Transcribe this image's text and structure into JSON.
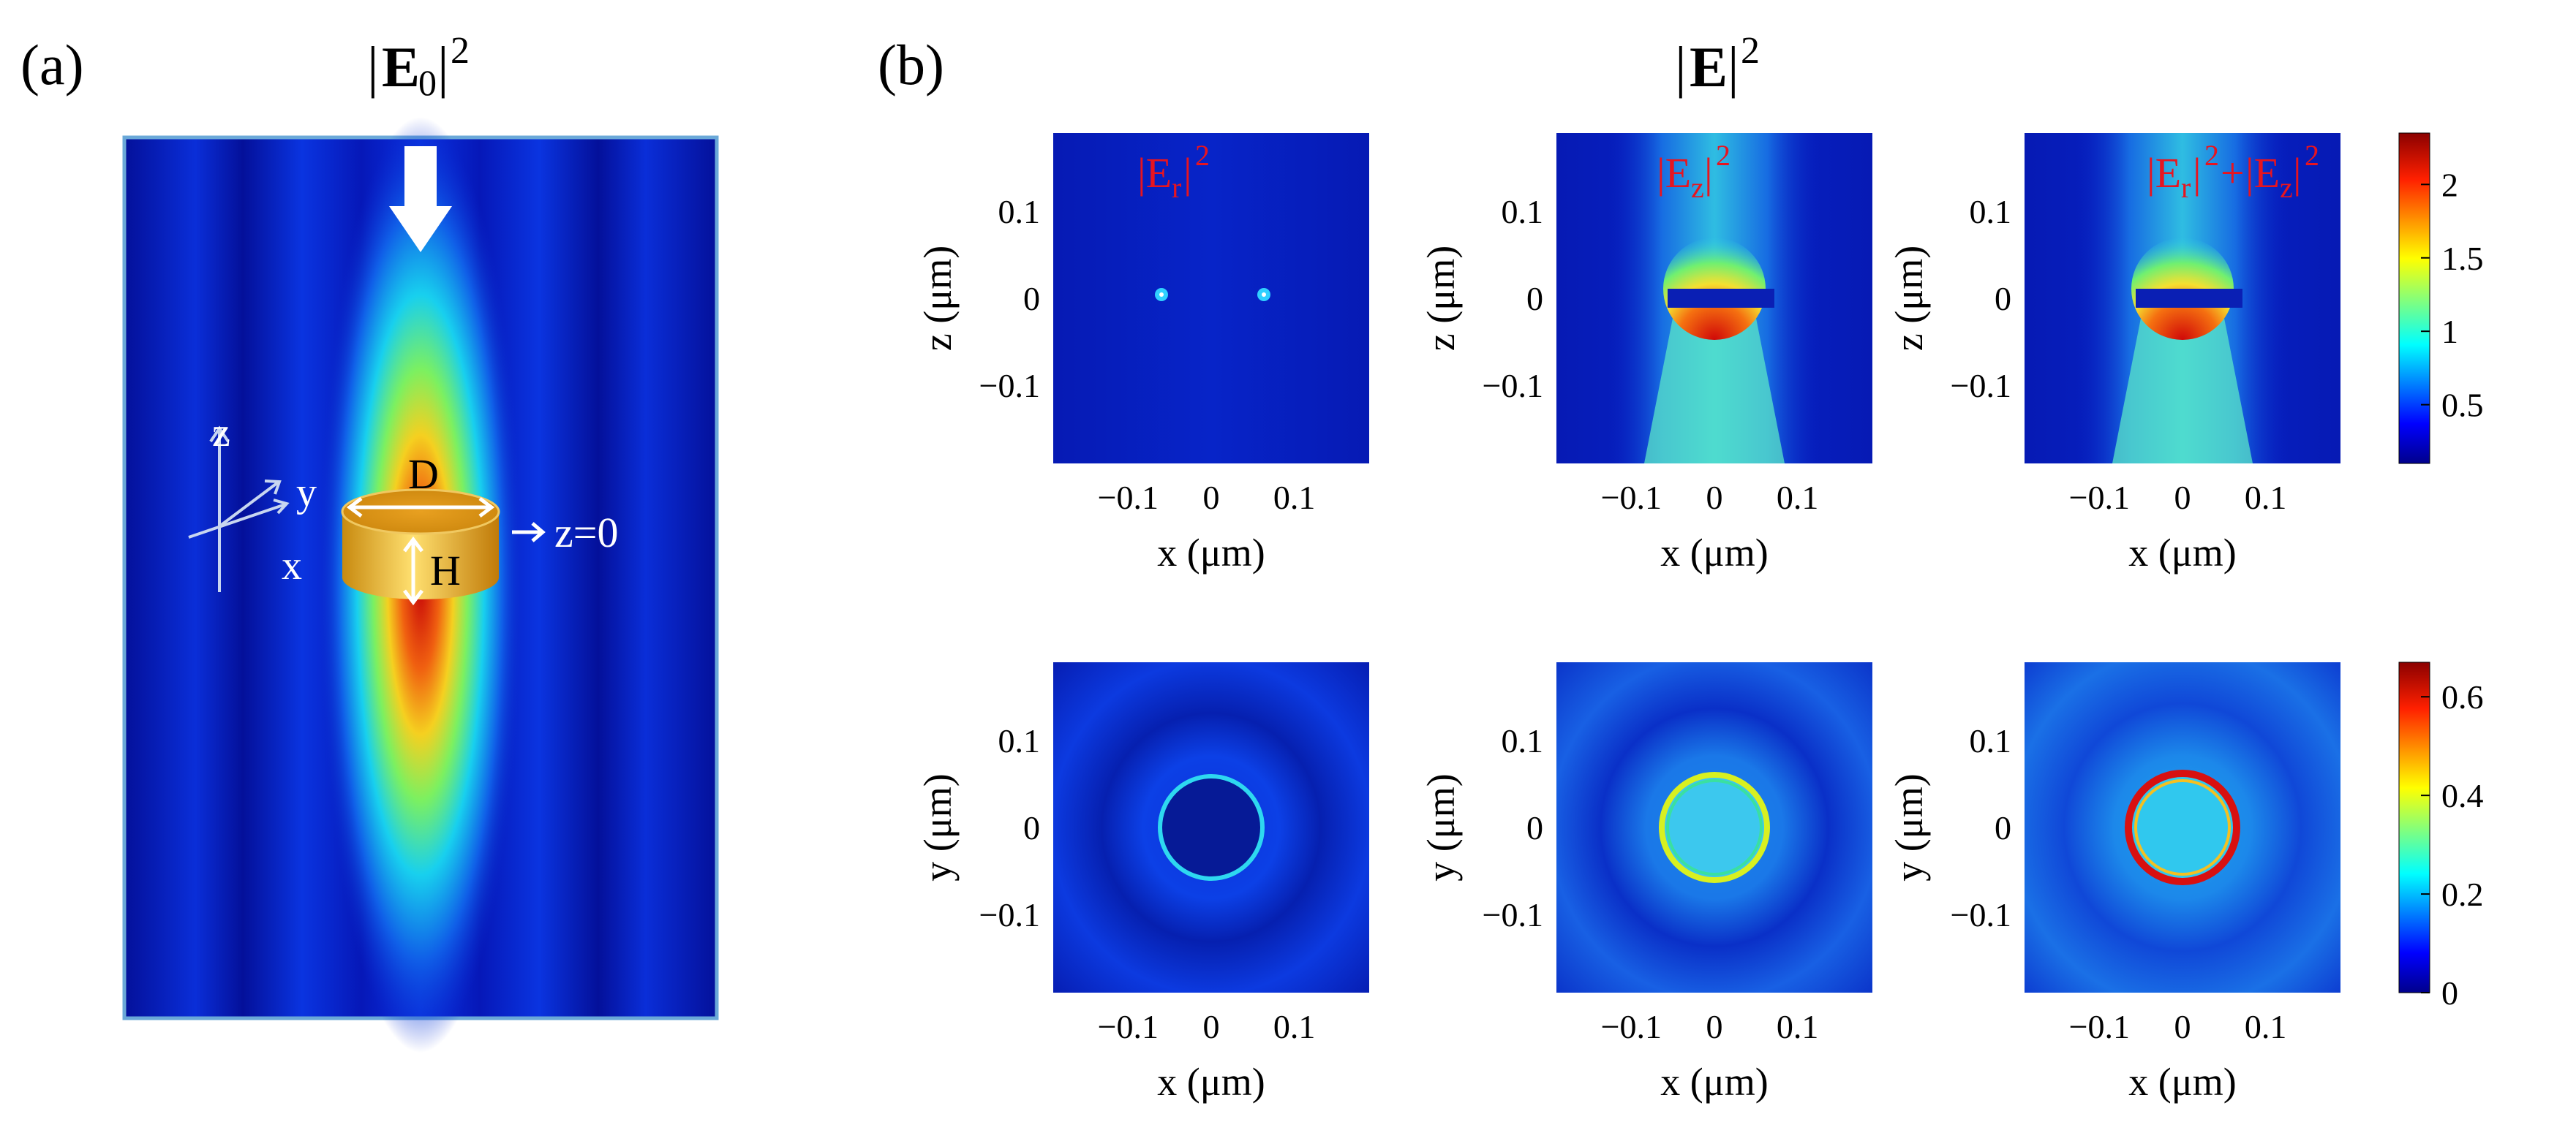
{
  "panel_a": {
    "label": "(a)",
    "title_prefix": "|",
    "title_E": "E",
    "title_sub": "0",
    "title_suffix": "|",
    "title_sup": "2",
    "axis_z": "z",
    "axis_y": "y",
    "axis_x": "x",
    "dim_D": "D",
    "dim_H": "H",
    "plane": "z=0"
  },
  "panel_b": {
    "label": "(b)",
    "title_prefix": "|",
    "title_E": "E",
    "title_suffix": "|",
    "title_sup": "2",
    "top_titles": {
      "er": {
        "pre": "|E",
        "sub": "r",
        "post": "|",
        "sup": "2"
      },
      "ez": {
        "pre": "|E",
        "sub": "z",
        "post": "|",
        "sup": "2"
      },
      "sum": {
        "pre1": "|E",
        "sub1": "r",
        "post1": "|",
        "sup1": "2",
        "plus": "+",
        "pre2": "|E",
        "sub2": "z",
        "post2": "|",
        "sup2": "2"
      }
    },
    "xlabel_top": "x (μm)",
    "ylabel_top": "z (μm)",
    "xlabel_bottom": "x (μm)",
    "ylabel_bottom": "y (μm)",
    "ticks": [
      "−0.1",
      "0",
      "0.1"
    ],
    "yticks": [
      "0.1",
      "0",
      "−0.1"
    ],
    "colorbar_top": {
      "ticks": [
        "2",
        "1.5",
        "1",
        "0.5"
      ],
      "range": [
        0.1,
        2.35
      ]
    },
    "colorbar_bottom": {
      "ticks": [
        "0.6",
        "0.4",
        "0.2",
        "0"
      ],
      "range": [
        0,
        0.67
      ]
    }
  },
  "colors": {
    "jet_dark": "#00008b",
    "jet_blue": "#0a2ae0",
    "jet_cyan": "#18d0ee",
    "jet_green": "#7cf060",
    "jet_yellow": "#f7e52a",
    "jet_orange": "#f58a14",
    "jet_red": "#d81010",
    "title_red": "#e8141f"
  }
}
